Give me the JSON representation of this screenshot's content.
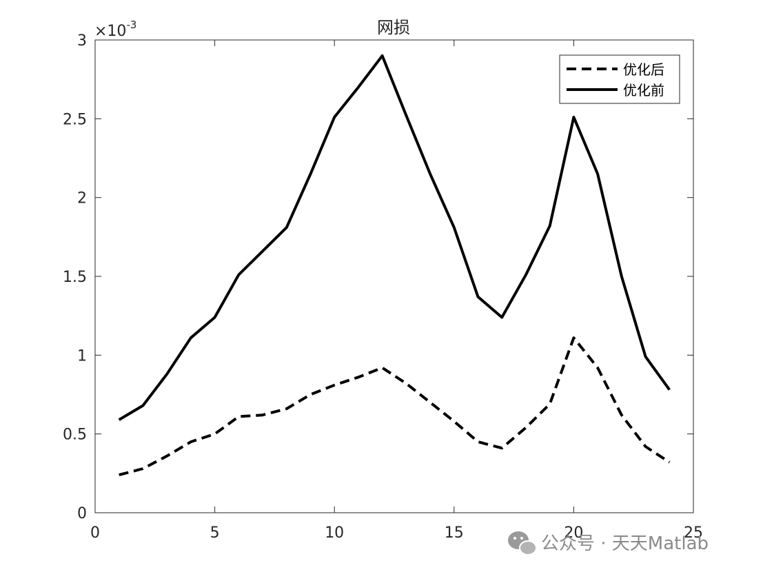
{
  "chart_data": {
    "type": "line",
    "title": "网损",
    "xlabel": "",
    "ylabel": "",
    "x": [
      1,
      2,
      3,
      4,
      5,
      6,
      7,
      8,
      9,
      10,
      11,
      12,
      13,
      14,
      15,
      16,
      17,
      18,
      19,
      20,
      21,
      22,
      23,
      24
    ],
    "series": [
      {
        "name": "优化后",
        "style": "dashed",
        "color": "#000000",
        "values": [
          0.24,
          0.28,
          0.36,
          0.45,
          0.5,
          0.61,
          0.62,
          0.66,
          0.75,
          0.81,
          0.86,
          0.92,
          0.82,
          0.7,
          0.58,
          0.45,
          0.41,
          0.54,
          0.69,
          1.11,
          0.92,
          0.62,
          0.42,
          0.32
        ]
      },
      {
        "name": "优化前",
        "style": "solid",
        "color": "#000000",
        "values": [
          0.59,
          0.68,
          0.88,
          1.11,
          1.24,
          1.51,
          1.66,
          1.81,
          2.15,
          2.51,
          2.7,
          2.9,
          2.52,
          2.15,
          1.81,
          1.37,
          1.24,
          1.51,
          1.82,
          2.51,
          2.15,
          1.5,
          0.99,
          0.78
        ]
      }
    ],
    "xlim": [
      0,
      25
    ],
    "ylim": [
      0,
      3
    ],
    "xticks": [
      0,
      5,
      10,
      15,
      20,
      25
    ],
    "yticks": [
      0,
      0.5,
      1,
      1.5,
      2,
      2.5,
      3
    ],
    "xtick_labels": [
      "0",
      "5",
      "10",
      "15",
      "20",
      "25"
    ],
    "ytick_labels": [
      "0",
      "0.5",
      "1",
      "1.5",
      "2",
      "2.5",
      "3"
    ],
    "y_exponent_label": "×10",
    "y_exponent_power": "-3",
    "legend": {
      "position": "top-right"
    },
    "grid": false
  },
  "watermark": {
    "text": "公众号 · 天天Matlab",
    "icon": "wechat-icon",
    "color": "#8a8a8a"
  }
}
